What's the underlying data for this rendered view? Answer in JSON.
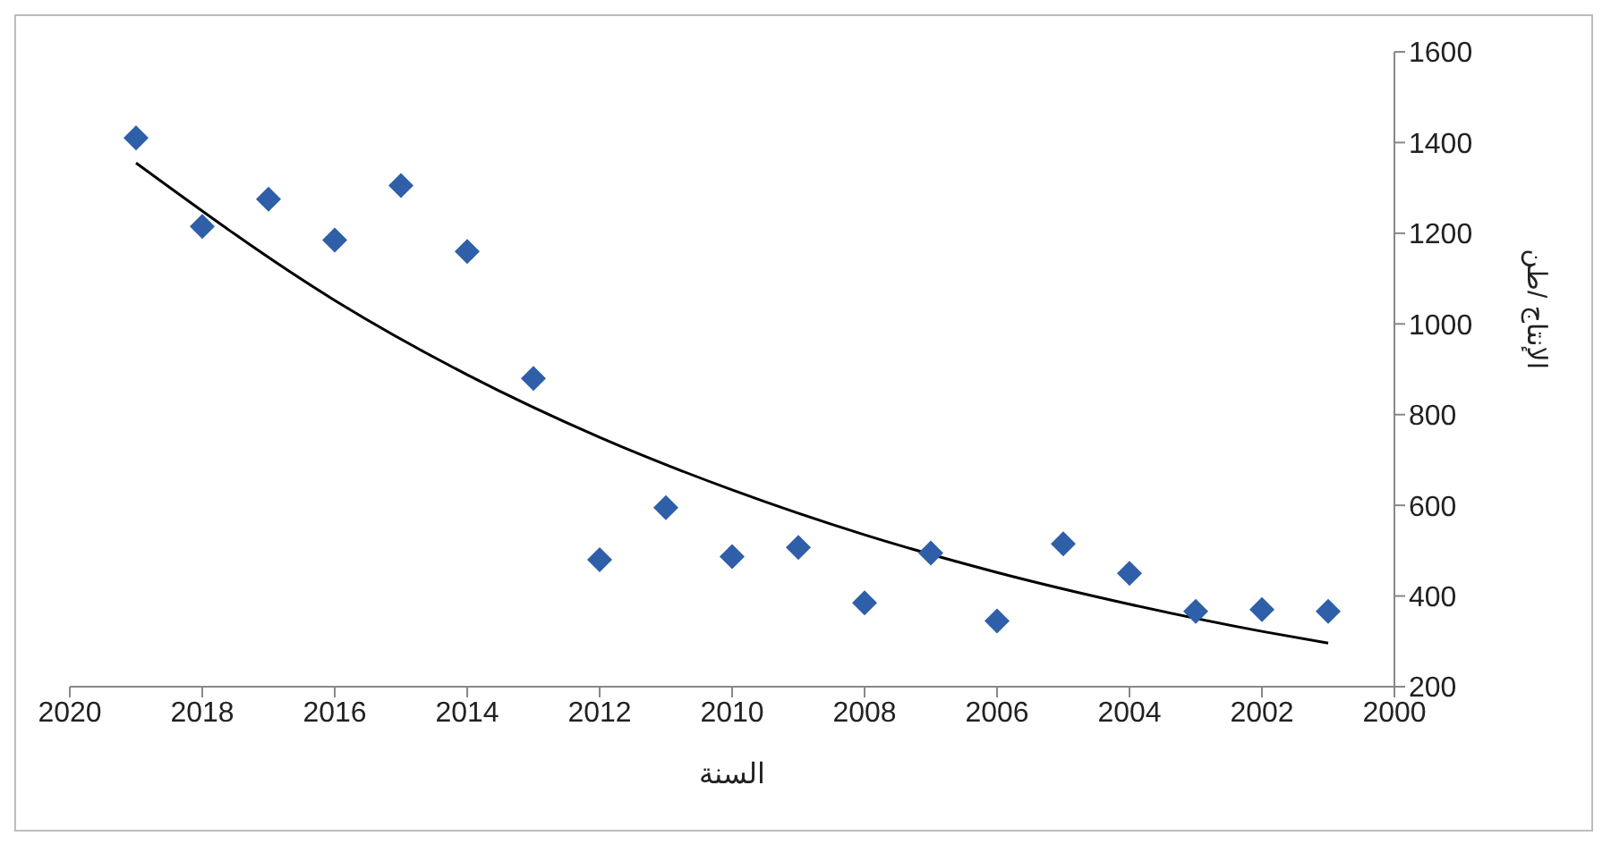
{
  "chart_data": {
    "type": "scatter",
    "xlabel": "السنة",
    "ylabel": "الإنتاج /طن",
    "xlim": [
      2020,
      2000
    ],
    "xticks": [
      2020,
      2018,
      2016,
      2014,
      2012,
      2010,
      2008,
      2006,
      2004,
      2002,
      2000
    ],
    "ylim": [
      200,
      1600
    ],
    "yticks": [
      200,
      400,
      600,
      800,
      1000,
      1200,
      1400,
      1600
    ],
    "grid": false,
    "legend": false,
    "series": [
      {
        "type": "scatter",
        "color": "#2e5fa8",
        "marker": "diamond",
        "x": [
          2019,
          2018,
          2017,
          2016,
          2015,
          2014,
          2013,
          2012,
          2011,
          2010,
          2009,
          2008,
          2007,
          2006,
          2005,
          2004,
          2003,
          2002,
          2001
        ],
        "values": [
          1410,
          1215,
          1275,
          1185,
          1305,
          1160,
          880,
          480,
          595,
          487,
          507,
          385,
          495,
          345,
          515,
          450,
          366,
          370,
          366
        ]
      },
      {
        "type": "line",
        "color": "#000000",
        "marker": "none",
        "line_style": "solid",
        "x": [
          2019,
          2016,
          2014,
          2012,
          2010,
          2008,
          2006,
          2004,
          2002,
          2001
        ],
        "values": [
          1355,
          1052,
          888,
          750,
          634,
          535,
          452,
          382,
          322,
          296
        ]
      }
    ]
  }
}
